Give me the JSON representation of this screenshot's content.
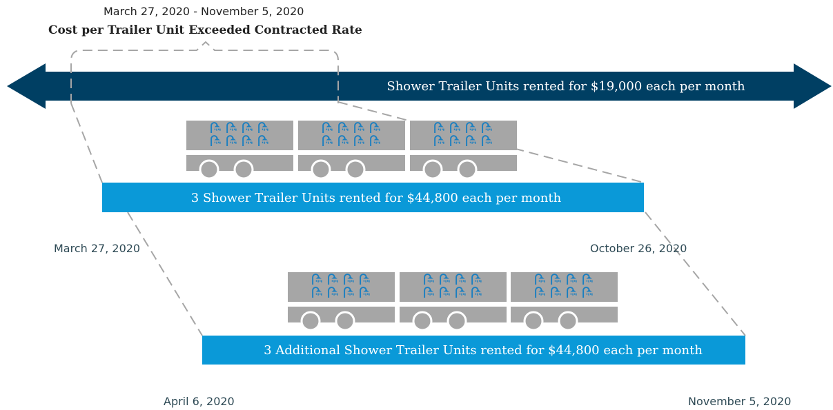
{
  "header": {
    "date_range": "March 27, 2020 - November 5, 2020",
    "title": "Cost per Trailer Unit Exceeded Contracted Rate"
  },
  "arrow": {
    "label": "Shower Trailer Units rented for $19,000 each per month"
  },
  "bar1": {
    "label": "3 Shower Trailer Units rented for $44,800 each per month",
    "start": "March 27, 2020",
    "end": "October 26, 2020"
  },
  "bar2": {
    "label": "3 Additional Shower Trailer Units rented for $44,800 each per month",
    "start": "April 6, 2020",
    "end": "November 5, 2020"
  }
}
